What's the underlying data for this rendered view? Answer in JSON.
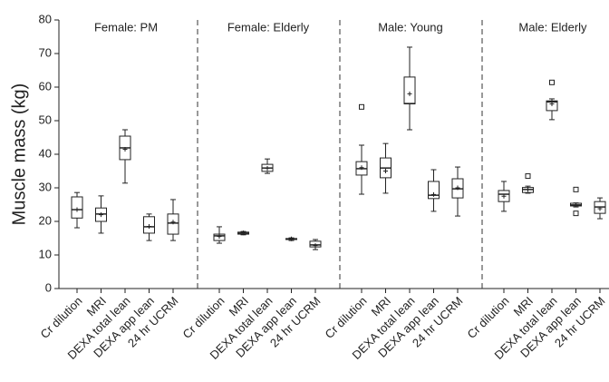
{
  "chart_data": {
    "type": "box",
    "ylabel": "Muscle mass (kg)",
    "ylim": [
      0,
      80
    ],
    "yticks": [
      0,
      10,
      20,
      30,
      40,
      50,
      60,
      70,
      80
    ],
    "color": "#222222",
    "panels": [
      {
        "title": "Female: PM",
        "categories": [
          "Cr dilution",
          "MRI",
          "DEXA total lean",
          "DEXA app lean",
          "24 hr UCRM"
        ],
        "boxes": [
          {
            "low": 18.1,
            "q1": 21,
            "median": 23.5,
            "q3": 27.3,
            "high": 28.6,
            "mean": 23.5,
            "outliers": []
          },
          {
            "low": 16.5,
            "q1": 20,
            "median": 22.2,
            "q3": 24,
            "high": 27.6,
            "mean": 22,
            "outliers": []
          },
          {
            "low": 31.4,
            "q1": 38.4,
            "median": 41.9,
            "q3": 45.4,
            "high": 47.3,
            "mean": 41.5,
            "outliers": []
          },
          {
            "low": 14.3,
            "q1": 16.5,
            "median": 18.4,
            "q3": 21.4,
            "high": 22.2,
            "mean": 18.5,
            "outliers": []
          },
          {
            "low": 14.3,
            "q1": 16.2,
            "median": 19.5,
            "q3": 22.2,
            "high": 26.5,
            "mean": 19.8,
            "outliers": []
          }
        ]
      },
      {
        "title": "Female: Elderly",
        "categories": [
          "Cr dilution",
          "MRI",
          "DEXA total lean",
          "DEXA app lean",
          "24 hr UCRM"
        ],
        "boxes": [
          {
            "low": 13.5,
            "q1": 14.3,
            "median": 15.7,
            "q3": 16.2,
            "high": 18.4,
            "mean": 15.5,
            "outliers": []
          },
          {
            "low": 16,
            "q1": 16.2,
            "median": 16.5,
            "q3": 16.8,
            "high": 17,
            "mean": 16.6,
            "outliers": []
          },
          {
            "low": 34.3,
            "q1": 34.9,
            "median": 35.9,
            "q3": 37,
            "high": 38.6,
            "mean": 35.8,
            "outliers": []
          },
          {
            "low": 14.3,
            "q1": 14.6,
            "median": 14.7,
            "q3": 14.9,
            "high": 15.1,
            "mean": 14.8,
            "outliers": []
          },
          {
            "low": 11.6,
            "q1": 12.4,
            "median": 13,
            "q3": 14.1,
            "high": 14.6,
            "mean": 12.8,
            "outliers": []
          }
        ]
      },
      {
        "title": "Male: Young",
        "categories": [
          "Cr dilution",
          "MRI",
          "DEXA total lean",
          "DEXA app lean",
          "24 hr UCRM"
        ],
        "boxes": [
          {
            "low": 28.1,
            "q1": 33.8,
            "median": 35.7,
            "q3": 37.8,
            "high": 42.7,
            "mean": 36,
            "outliers": [
              54.1
            ]
          },
          {
            "low": 28.4,
            "q1": 33,
            "median": 35.9,
            "q3": 38.9,
            "high": 43.2,
            "mean": 35,
            "outliers": []
          },
          {
            "low": 47.3,
            "q1": 55,
            "median": 55.1,
            "q3": 63,
            "high": 71.9,
            "mean": 58,
            "outliers": []
          },
          {
            "low": 23,
            "q1": 26.8,
            "median": 27.8,
            "q3": 31.9,
            "high": 35.4,
            "mean": 28,
            "outliers": []
          },
          {
            "low": 21.6,
            "q1": 27,
            "median": 29.7,
            "q3": 32.7,
            "high": 36.2,
            "mean": 30,
            "outliers": []
          }
        ]
      },
      {
        "title": "Male: Elderly",
        "categories": [
          "Cr dilution",
          "MRI",
          "DEXA total lean",
          "DEXA app lean",
          "24 hr UCRM"
        ],
        "boxes": [
          {
            "low": 23,
            "q1": 25.9,
            "median": 28.1,
            "q3": 29.2,
            "high": 31.9,
            "mean": 27.5,
            "outliers": []
          },
          {
            "low": 28.4,
            "q1": 28.6,
            "median": 29.5,
            "q3": 30.1,
            "high": 30.5,
            "mean": 29.5,
            "outliers": [
              33.5
            ]
          },
          {
            "low": 50.3,
            "q1": 53,
            "median": 55.6,
            "q3": 55.9,
            "high": 56.5,
            "mean": 55,
            "outliers": [
              61.4
            ]
          },
          {
            "low": 24.3,
            "q1": 24.6,
            "median": 24.9,
            "q3": 25.4,
            "high": 25.5,
            "mean": 24.9,
            "outliers": [
              29.5,
              22.4
            ]
          },
          {
            "low": 20.8,
            "q1": 22.4,
            "median": 24.3,
            "q3": 25.9,
            "high": 27,
            "mean": 23.8,
            "outliers": []
          }
        ]
      }
    ]
  }
}
